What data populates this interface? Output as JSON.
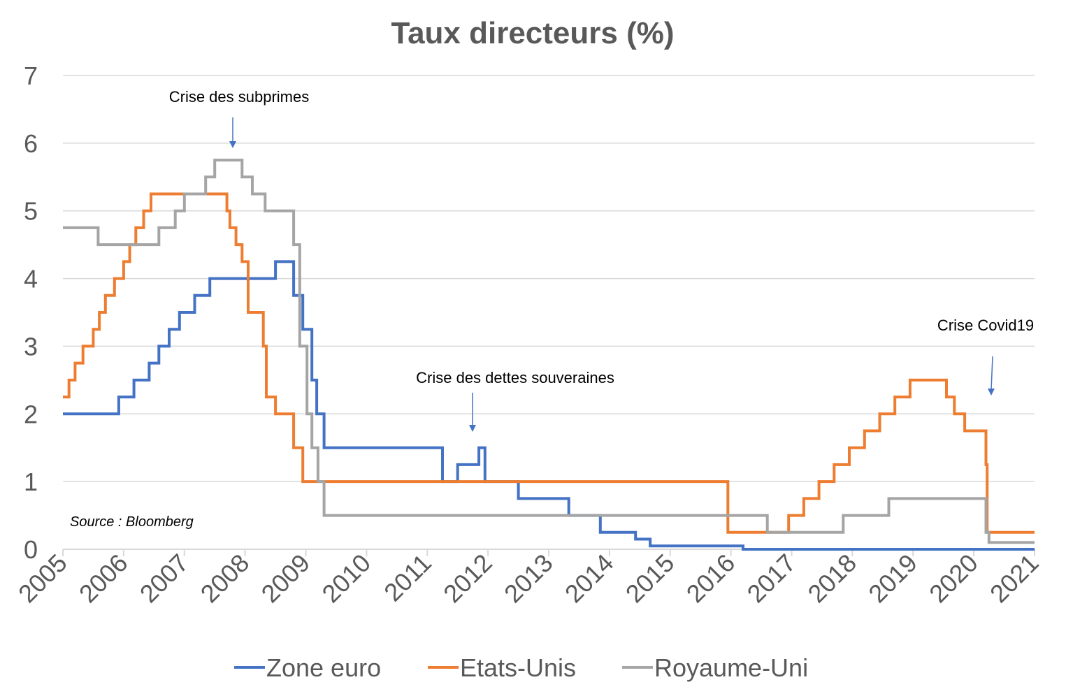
{
  "chart_data": {
    "type": "line",
    "title": "Taux directeurs (%)",
    "xlabel": "",
    "ylabel": "",
    "xlim": [
      2005,
      2021
    ],
    "ylim": [
      0,
      7
    ],
    "x_ticks": [
      "2005",
      "2006",
      "2007",
      "2008",
      "2009",
      "2010",
      "2011",
      "2012",
      "2013",
      "2014",
      "2015",
      "2016",
      "2017",
      "2018",
      "2019",
      "2020",
      "2021"
    ],
    "y_ticks": [
      "0",
      "1",
      "2",
      "3",
      "4",
      "5",
      "6",
      "7"
    ],
    "grid": true,
    "legend_position": "bottom",
    "step": true,
    "series": [
      {
        "name": "Zone euro",
        "color": "#4472c4",
        "x": [
          2005.0,
          2005.92,
          2006.17,
          2006.42,
          2006.58,
          2006.75,
          2006.92,
          2007.17,
          2007.42,
          2008.5,
          2008.8,
          2008.95,
          2009.1,
          2009.18,
          2009.3,
          2011.25,
          2011.5,
          2011.85,
          2011.95,
          2012.5,
          2013.33,
          2013.85,
          2014.43,
          2014.67,
          2016.2,
          2021.0
        ],
        "values": [
          2.0,
          2.25,
          2.5,
          2.75,
          3.0,
          3.25,
          3.5,
          3.75,
          4.0,
          4.25,
          3.75,
          3.25,
          2.5,
          2.0,
          1.5,
          1.0,
          1.25,
          1.5,
          1.0,
          0.75,
          0.5,
          0.25,
          0.15,
          0.05,
          0.0,
          0.0
        ]
      },
      {
        "name": "Etats-Unis",
        "color": "#ed7d31",
        "x": [
          2005.0,
          2005.1,
          2005.2,
          2005.33,
          2005.5,
          2005.6,
          2005.7,
          2005.85,
          2006.0,
          2006.1,
          2006.2,
          2006.33,
          2006.45,
          2006.6,
          2007.7,
          2007.75,
          2007.85,
          2007.95,
          2008.05,
          2008.3,
          2008.35,
          2008.5,
          2008.8,
          2008.95,
          2015.95,
          2016.95,
          2017.2,
          2017.45,
          2017.7,
          2017.95,
          2018.2,
          2018.45,
          2018.7,
          2018.95,
          2019.55,
          2019.68,
          2019.85,
          2020.2,
          2020.22,
          2021.0
        ],
        "values": [
          2.25,
          2.5,
          2.75,
          3.0,
          3.25,
          3.5,
          3.75,
          4.0,
          4.25,
          4.5,
          4.75,
          5.0,
          5.25,
          5.25,
          5.0,
          4.75,
          4.5,
          4.25,
          3.5,
          3.0,
          2.25,
          2.0,
          1.5,
          1.0,
          0.25,
          0.5,
          0.75,
          1.0,
          1.25,
          1.5,
          1.75,
          2.0,
          2.25,
          2.5,
          2.25,
          2.0,
          1.75,
          1.25,
          0.25,
          0.25
        ]
      },
      {
        "name": "Royaume-Uni",
        "color": "#a5a5a5",
        "x": [
          2005.0,
          2005.58,
          2006.58,
          2006.85,
          2007.0,
          2007.35,
          2007.5,
          2007.95,
          2008.12,
          2008.33,
          2008.8,
          2008.9,
          2009.02,
          2009.1,
          2009.2,
          2009.3,
          2016.6,
          2017.85,
          2018.6,
          2020.2,
          2020.25,
          2021.0
        ],
        "values": [
          4.75,
          4.5,
          4.75,
          5.0,
          5.25,
          5.5,
          5.75,
          5.5,
          5.25,
          5.0,
          4.5,
          3.0,
          2.0,
          1.5,
          1.0,
          0.5,
          0.25,
          0.5,
          0.75,
          0.25,
          0.1,
          0.1
        ]
      }
    ],
    "annotations": [
      {
        "text": "Crise des subprimes",
        "x": 2007.8,
        "y": 5.9
      },
      {
        "text": "Crise des dettes souveraines",
        "x": 2011.75,
        "y": 1.75
      },
      {
        "text": "Crise Covid19",
        "x": 2020.3,
        "y": 2.3
      }
    ],
    "source": "Source : Bloomberg"
  }
}
